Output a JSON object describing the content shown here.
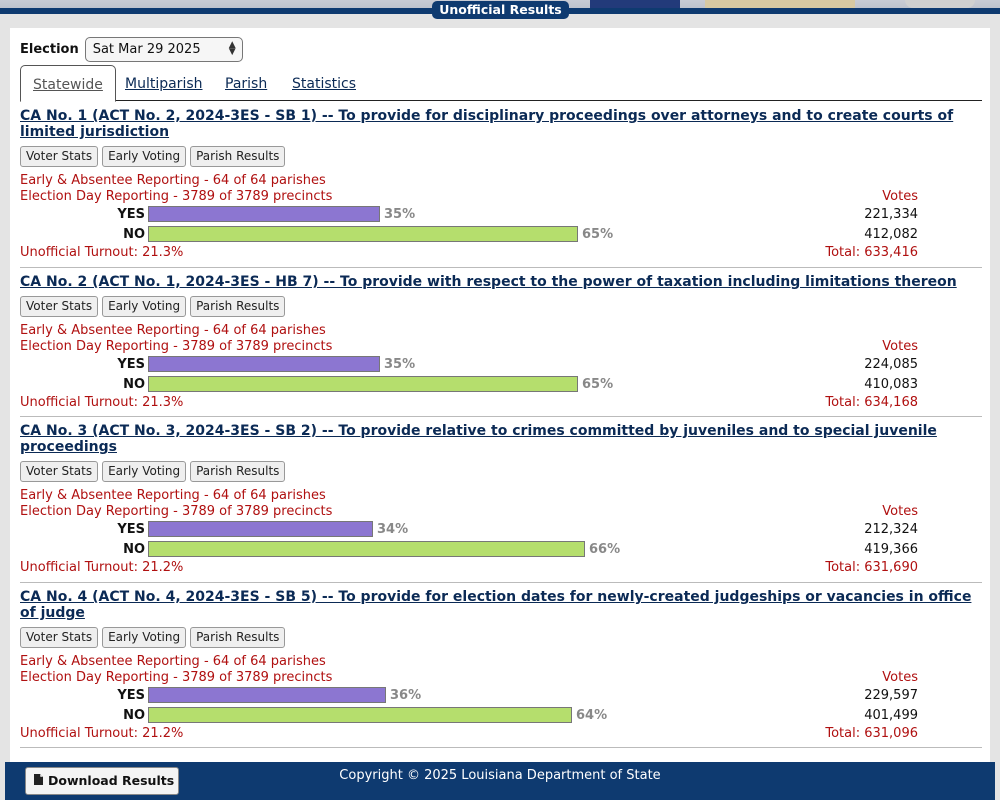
{
  "header": {
    "banner": "Unofficial Results"
  },
  "election": {
    "label": "Election",
    "selected": "Sat Mar 29 2025"
  },
  "tabs": [
    "Statewide",
    "Multiparish",
    "Parish",
    "Statistics"
  ],
  "buttons": {
    "voter_stats": "Voter Stats",
    "early_voting": "Early Voting",
    "parish_results": "Parish Results"
  },
  "votes_header": "Votes",
  "races": [
    {
      "title": "CA No. 1 (ACT No. 2, 2024-3ES - SB 1) -- To provide for disciplinary proceedings over attorneys and to create courts of limited jurisdiction",
      "early": "Early & Absentee Reporting - 64 of 64 parishes",
      "eday": "Election Day Reporting - 3789 of 3789 precincts",
      "yes_pct": 35,
      "yes_pct_label": "35%",
      "yes_votes": "221,334",
      "no_pct": 65,
      "no_pct_label": "65%",
      "no_votes": "412,082",
      "turnout": "Unofficial Turnout: 21.3%",
      "total": "Total: 633,416"
    },
    {
      "title": "CA No. 2 (ACT No. 1, 2024-3ES - HB 7) -- To provide with respect to the power of taxation including limitations thereon",
      "early": "Early & Absentee Reporting - 64 of 64 parishes",
      "eday": "Election Day Reporting - 3789 of 3789 precincts",
      "yes_pct": 35,
      "yes_pct_label": "35%",
      "yes_votes": "224,085",
      "no_pct": 65,
      "no_pct_label": "65%",
      "no_votes": "410,083",
      "turnout": "Unofficial Turnout: 21.3%",
      "total": "Total: 634,168"
    },
    {
      "title": "CA No. 3 (ACT No. 3, 2024-3ES - SB 2) -- To provide relative to crimes committed by juveniles and to special juvenile proceedings",
      "early": "Early & Absentee Reporting - 64 of 64 parishes",
      "eday": "Election Day Reporting - 3789 of 3789 precincts",
      "yes_pct": 34,
      "yes_pct_label": "34%",
      "yes_votes": "212,324",
      "no_pct": 66,
      "no_pct_label": "66%",
      "no_votes": "419,366",
      "turnout": "Unofficial Turnout: 21.2%",
      "total": "Total: 631,690"
    },
    {
      "title": "CA No. 4 (ACT No. 4, 2024-3ES - SB 5) -- To provide for election dates for newly-created judgeships or vacancies in office of judge",
      "early": "Early & Absentee Reporting - 64 of 64 parishes",
      "eday": "Election Day Reporting - 3789 of 3789 precincts",
      "yes_pct": 36,
      "yes_pct_label": "36%",
      "yes_votes": "229,597",
      "no_pct": 64,
      "no_pct_label": "64%",
      "no_votes": "401,499",
      "turnout": "Unofficial Turnout: 21.2%",
      "total": "Total: 631,096"
    }
  ],
  "footer": {
    "download": "Download Results",
    "copyright": "Copyright © 2025 Louisiana Department of State"
  },
  "colors": {
    "navy": "#0e3a70",
    "yes_bar": "#8c76d1",
    "no_bar": "#b5de6d",
    "reporting": "#b01010"
  }
}
